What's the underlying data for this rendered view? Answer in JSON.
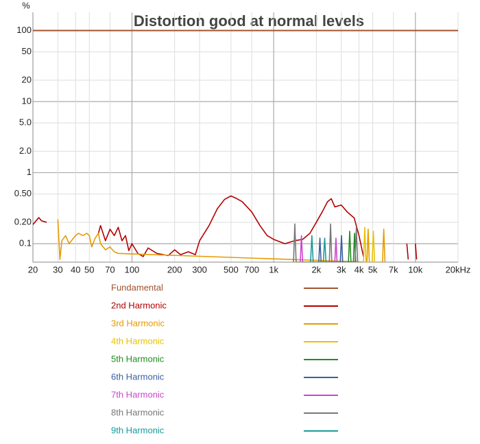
{
  "chart_data": {
    "type": "line",
    "title": "Distortion good at normal levels",
    "y_label": "%",
    "log_x": true,
    "log_y": true,
    "grid": true,
    "legend_position": "bottom",
    "xlim": [
      20,
      20000
    ],
    "ylim": [
      0.055,
      180
    ],
    "xticks": [
      20,
      30,
      40,
      50,
      70,
      100,
      200,
      300,
      500,
      700,
      {
        "value": 1000,
        "label": "1k"
      },
      {
        "value": 2000,
        "label": "2k"
      },
      {
        "value": 3000,
        "label": "3k"
      },
      {
        "value": 4000,
        "label": "4k"
      },
      {
        "value": 5000,
        "label": "5k"
      },
      {
        "value": 7000,
        "label": "7k"
      },
      {
        "value": 10000,
        "label": "10k"
      },
      {
        "value": 20000,
        "label": "20kHz"
      }
    ],
    "yticks": [
      100,
      50,
      20,
      10,
      {
        "value": 5,
        "label": "5.0"
      },
      {
        "value": 2,
        "label": "2.0"
      },
      1,
      {
        "value": 0.5,
        "label": "0.50"
      },
      {
        "value": 0.2,
        "label": "0.20"
      },
      0.1
    ],
    "series": [
      {
        "name": "Fundamental",
        "color": "#a0522d",
        "x": [
          20,
          20000
        ],
        "values": [
          100,
          100
        ]
      },
      {
        "name": "2nd Harmonic",
        "color": "#b00000",
        "x": [
          20,
          22,
          23,
          25,
          26,
          58,
          60,
          65,
          70,
          75,
          80,
          85,
          90,
          95,
          100,
          110,
          120,
          130,
          150,
          180,
          200,
          220,
          250,
          280,
          300,
          350,
          400,
          450,
          500,
          550,
          600,
          700,
          800,
          900,
          1000,
          1200,
          1400,
          1600,
          1800,
          2000,
          2200,
          2400,
          2550,
          2700,
          3000,
          3300,
          3700,
          4000,
          4300,
          8500,
          8700,
          8900,
          9800,
          10000,
          10200
        ],
        "values": [
          0.186,
          0.233,
          0.21,
          0.2,
          null,
          0.14,
          0.18,
          0.11,
          0.16,
          0.13,
          0.17,
          0.11,
          0.13,
          0.08,
          0.1,
          0.073,
          0.066,
          0.087,
          0.073,
          0.068,
          0.082,
          0.07,
          0.077,
          0.07,
          0.11,
          0.18,
          0.31,
          0.42,
          0.47,
          0.43,
          0.39,
          0.28,
          0.18,
          0.13,
          0.115,
          0.1,
          0.11,
          0.115,
          0.14,
          0.2,
          0.28,
          0.39,
          0.43,
          0.33,
          0.35,
          0.28,
          0.23,
          0.13,
          0.066,
          null,
          0.1,
          0.06,
          null,
          0.1,
          0.06
        ]
      },
      {
        "name": "3rd Harmonic",
        "color": "#e69b00",
        "x": [
          30,
          31,
          32,
          34,
          36,
          40,
          42,
          45,
          48,
          50,
          52,
          55,
          58,
          60,
          65,
          70,
          75,
          80,
          4550,
          4640,
          4730,
          5860,
          5980,
          6100
        ],
        "values": [
          0.22,
          0.06,
          0.11,
          0.13,
          0.1,
          0.13,
          0.14,
          0.13,
          0.14,
          0.13,
          0.09,
          0.12,
          0.14,
          0.1,
          0.082,
          0.09,
          0.077,
          0.073,
          0.055,
          0.16,
          0.055,
          0.055,
          0.16,
          0.055
        ]
      },
      {
        "name": "4th Harmonic",
        "color": "#e6c300",
        "x": [
          4300,
          4390,
          4480,
          4950,
          5050,
          5150
        ],
        "values": [
          0.055,
          0.17,
          0.055,
          0.055,
          0.15,
          0.055
        ]
      },
      {
        "name": "5th Harmonic",
        "color": "#228b22",
        "x": [
          3370,
          3440,
          3510,
          3650,
          3720,
          3790
        ],
        "values": [
          0.055,
          0.15,
          0.055,
          0.055,
          0.14,
          0.055
        ]
      },
      {
        "name": "6th Harmonic",
        "color": "#3a5fa0",
        "x": [
          2080,
          2120,
          2160,
          2950,
          3010,
          3070
        ],
        "values": [
          0.055,
          0.12,
          0.055,
          0.055,
          0.13,
          0.055
        ]
      },
      {
        "name": "7th Harmonic",
        "color": "#cc44cc",
        "x": [
          1540,
          1570,
          1600,
          2700,
          2750,
          2800
        ],
        "values": [
          0.055,
          0.13,
          0.055,
          0.055,
          0.12,
          0.055
        ]
      },
      {
        "name": "8th Harmonic",
        "color": "#777777",
        "x": [
          1380,
          1410,
          1440,
          2470,
          2520,
          2570,
          3750,
          3830,
          3910
        ],
        "values": [
          0.055,
          0.19,
          0.055,
          0.055,
          0.19,
          0.055,
          0.055,
          0.17,
          0.055
        ]
      },
      {
        "name": "9th Harmonic",
        "color": "#1a9a9a",
        "x": [
          1820,
          1860,
          1900,
          2240,
          2290,
          2340
        ],
        "values": [
          0.055,
          0.13,
          0.055,
          0.055,
          0.12,
          0.055
        ]
      }
    ]
  }
}
